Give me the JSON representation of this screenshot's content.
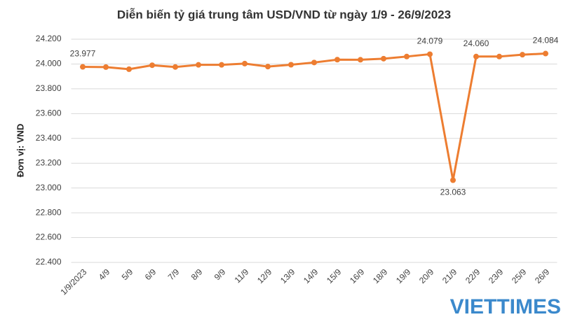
{
  "chart_data": {
    "type": "line",
    "title": "Diễn biến tỷ giá trung tâm USD/VND từ ngày 1/9 - 26/9/2023",
    "y_axis_label": "Đơn vị: VND",
    "watermark": "VIETTIMES",
    "categories": [
      "1/9/2023",
      "4/9",
      "5/9",
      "6/9",
      "7/9",
      "8/9",
      "9/9",
      "11/9",
      "12/9",
      "13/9",
      "14/9",
      "15/9",
      "16/9",
      "18/9",
      "19/9",
      "20/9",
      "21/9",
      "22/9",
      "23/9",
      "25/9",
      "26/9"
    ],
    "series": [
      {
        "name": "USD/VND",
        "color": "#ed7d31",
        "values": [
          23977,
          23975,
          23958,
          23990,
          23976,
          23993,
          23993,
          24003,
          23979,
          23994,
          24012,
          24035,
          24034,
          24043,
          24060,
          24079,
          23063,
          24060,
          24060,
          24075,
          24084
        ],
        "value_labels": [
          "23.977",
          null,
          null,
          null,
          null,
          null,
          null,
          null,
          null,
          null,
          null,
          null,
          null,
          null,
          null,
          "24.079",
          "23.063",
          "24.060",
          null,
          null,
          "24.084"
        ]
      }
    ],
    "ylim": [
      22400,
      24200
    ],
    "yticks": [
      {
        "value": 22400,
        "label": "22.400"
      },
      {
        "value": 22600,
        "label": "22.600"
      },
      {
        "value": 22800,
        "label": "22.800"
      },
      {
        "value": 23000,
        "label": "23.000"
      },
      {
        "value": 23200,
        "label": "23.200"
      },
      {
        "value": 23400,
        "label": "23.400"
      },
      {
        "value": 23600,
        "label": "23.600"
      },
      {
        "value": 23800,
        "label": "23.800"
      },
      {
        "value": 24000,
        "label": "24.000"
      },
      {
        "value": 24200,
        "label": "24.200"
      }
    ],
    "grid": true
  }
}
